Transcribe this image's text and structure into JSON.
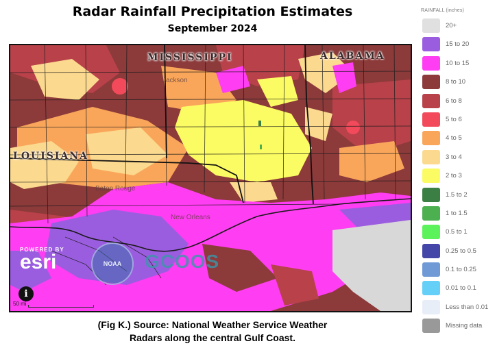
{
  "title": "Radar Rainfall Precipitation Estimates",
  "subtitle": "September 2024",
  "map": {
    "state_labels": [
      "MISSISSIPPI",
      "ALABAMA",
      "LOUISIANA"
    ],
    "city_labels": [
      "Jackson",
      "Baton Rouge",
      "New Orleans"
    ],
    "logos": {
      "esri_powered": "POWERED BY",
      "esri": "esri",
      "noaa": "NOAA",
      "gulf": "GCOOS"
    },
    "info_icon": "info-icon",
    "scale_label": "50 mi"
  },
  "legend": {
    "title": "RAINFALL (inches)",
    "items": [
      {
        "label": "20+",
        "color": "#e0e0e0"
      },
      {
        "label": "15 to 20",
        "color": "#9b5ddf"
      },
      {
        "label": "10 to 15",
        "color": "#ff3df2"
      },
      {
        "label": "8 to 10",
        "color": "#8c3a3a"
      },
      {
        "label": "6 to 8",
        "color": "#b8414a"
      },
      {
        "label": "5 to 6",
        "color": "#f24a5a"
      },
      {
        "label": "4 to 5",
        "color": "#f9a65a"
      },
      {
        "label": "3 to 4",
        "color": "#fbd98f"
      },
      {
        "label": "2 to 3",
        "color": "#fbfb63"
      },
      {
        "label": "1.5 to 2",
        "color": "#3c7f44"
      },
      {
        "label": "1 to 1.5",
        "color": "#4caf50"
      },
      {
        "label": "0.5 to 1",
        "color": "#5cf25c"
      },
      {
        "label": "0.25 to 0.5",
        "color": "#4447a8"
      },
      {
        "label": "0.1 to 0.25",
        "color": "#6f9ad6"
      },
      {
        "label": "0.01 to 0.1",
        "color": "#65d0f7"
      },
      {
        "label": "Less than 0.01",
        "color": "#e8eef8"
      },
      {
        "label": "Missing data",
        "color": "#999999"
      }
    ]
  },
  "caption": {
    "line1": "(Fig K.) Source: National Weather Service Weather",
    "line2": "Radars along the central Gulf Coast."
  }
}
